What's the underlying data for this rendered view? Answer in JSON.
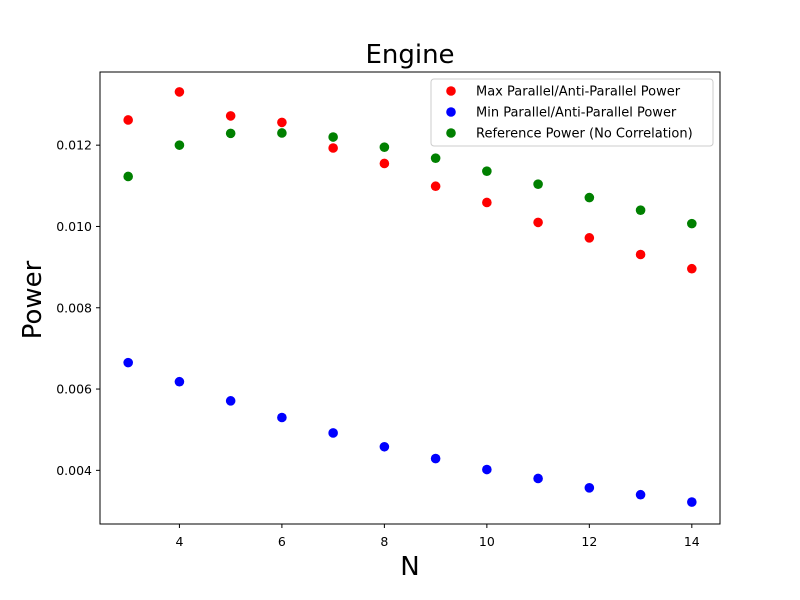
{
  "chart_data": {
    "type": "scatter",
    "title": "Engine",
    "xlabel": "N",
    "ylabel": "Power",
    "xlim": [
      2.45,
      14.55
    ],
    "ylim": [
      0.00268,
      0.0138
    ],
    "xticks": [
      4,
      6,
      8,
      10,
      12,
      14
    ],
    "xtick_labels": [
      "4",
      "6",
      "8",
      "10",
      "12",
      "14"
    ],
    "yticks": [
      0.004,
      0.006,
      0.008,
      0.01,
      0.012
    ],
    "ytick_labels": [
      "0.004",
      "0.006",
      "0.008",
      "0.010",
      "0.012"
    ],
    "grid": false,
    "legend_position": "top-right",
    "x": [
      3,
      4,
      5,
      6,
      7,
      8,
      9,
      10,
      11,
      12,
      13,
      14
    ],
    "series": [
      {
        "name": "Max Parallel/Anti-Parallel Power",
        "color": "#ff0000",
        "values": [
          0.01262,
          0.01331,
          0.01272,
          0.01256,
          0.01193,
          0.01155,
          0.01099,
          0.01059,
          0.0101,
          0.00972,
          0.00931,
          0.00896
        ]
      },
      {
        "name": "Min Parallel/Anti-Parallel Power",
        "color": "#0000ff",
        "values": [
          0.00665,
          0.00618,
          0.00571,
          0.0053,
          0.00492,
          0.00458,
          0.00429,
          0.00402,
          0.0038,
          0.00357,
          0.0034,
          0.00322
        ]
      },
      {
        "name": "Reference Power (No Correlation)",
        "color": "#008000",
        "values": [
          0.01123,
          0.012,
          0.01229,
          0.0123,
          0.0122,
          0.01195,
          0.01168,
          0.01136,
          0.01104,
          0.01071,
          0.0104,
          0.01007
        ]
      }
    ]
  }
}
